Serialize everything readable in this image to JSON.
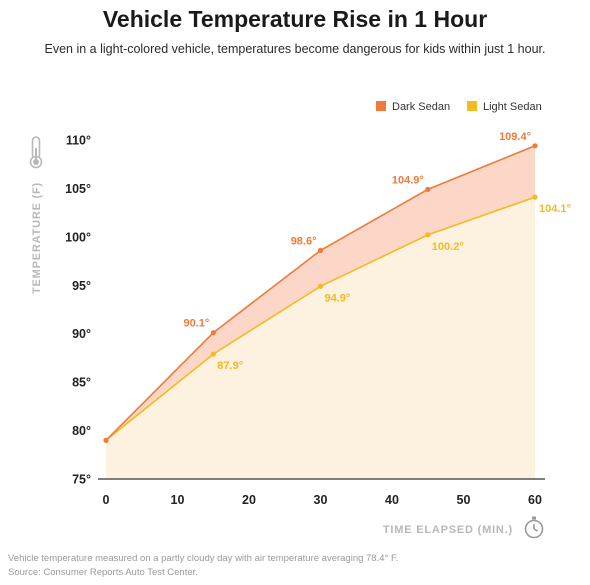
{
  "title": "Vehicle Temperature Rise in 1 Hour",
  "subtitle": "Even in a light-colored vehicle, temperatures become dangerous for kids within just 1 hour.",
  "footnote": {
    "line1": "Vehicle temperature measured on a partly cloudy day with air temperature averaging 78.4° F.",
    "line2": "Source: Consumer Reports Auto Test Center."
  },
  "chart_data": {
    "type": "area",
    "title": "Vehicle Temperature Rise in 1 Hour",
    "subtitle": "Even in a light-colored vehicle, temperatures become dangerous for kids within just 1 hour.",
    "xlabel": "TIME ELAPSED (MIN.)",
    "ylabel": "TEMPERATURE (F)",
    "xlim": [
      0,
      60
    ],
    "ylim": [
      75,
      110
    ],
    "x_ticks": [
      0,
      10,
      20,
      30,
      40,
      50,
      60
    ],
    "y_ticks": [
      75,
      80,
      85,
      90,
      95,
      100,
      105,
      110
    ],
    "y_tick_suffix": "°",
    "grid": false,
    "legend_position": "top-right",
    "x": [
      0,
      15,
      30,
      45,
      60
    ],
    "series": [
      {
        "name": "Dark Sedan",
        "color": "#f07a3a",
        "fill": "#fcd7c8",
        "values": [
          79,
          90.1,
          98.6,
          104.9,
          109.4
        ],
        "labels": [
          "",
          "90.1°",
          "98.6°",
          "104.9°",
          "109.4°"
        ]
      },
      {
        "name": "Light Sedan",
        "color": "#f5b921",
        "fill": "#fdf1df",
        "values": [
          79,
          87.9,
          94.9,
          100.2,
          104.1
        ],
        "labels": [
          "",
          "87.9°",
          "94.9°",
          "100.2°",
          "104.1°"
        ]
      }
    ],
    "icons": [
      "thermometer-icon",
      "stopwatch-icon"
    ]
  }
}
